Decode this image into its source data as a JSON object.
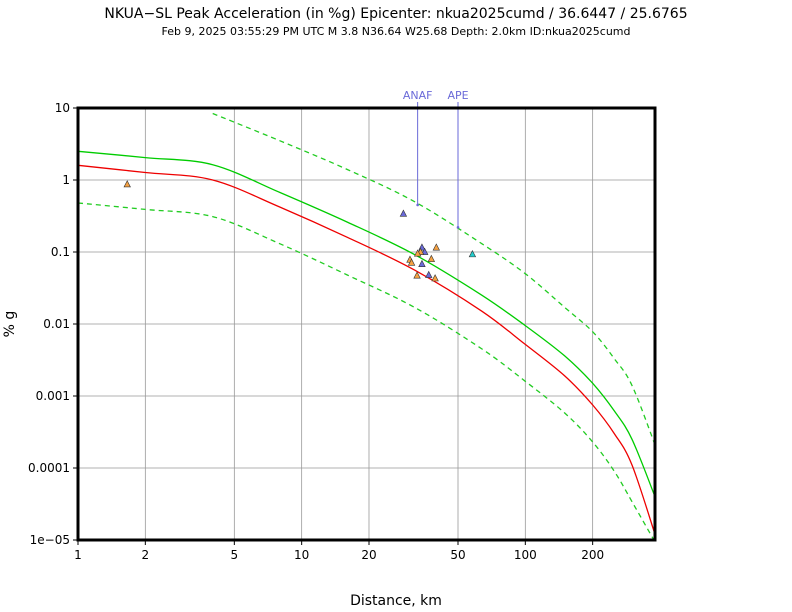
{
  "chart_data": {
    "type": "scatter",
    "title": "NKUA−SL Peak Acceleration (in %g) Epicenter: nkua2025cumd / 36.6447 / 25.6765",
    "subtitle": "Feb  9, 2025 03:55:29 PM UTC   M 3.8   N36.64 W25.68   Depth: 2.0km   ID:nkua2025cumd",
    "xlabel": "Distance, km",
    "ylabel": "% g",
    "xscale": "log",
    "yscale": "log",
    "xlim": [
      1,
      380
    ],
    "ylim": [
      1e-05,
      10
    ],
    "grid": true,
    "x_ticks": [
      {
        "v": 1,
        "label": "1"
      },
      {
        "v": 2,
        "label": "2"
      },
      {
        "v": 5,
        "label": "5"
      },
      {
        "v": 10,
        "label": "10"
      },
      {
        "v": 20,
        "label": "20"
      },
      {
        "v": 50,
        "label": "50"
      },
      {
        "v": 100,
        "label": "100"
      },
      {
        "v": 200,
        "label": "200"
      }
    ],
    "y_ticks": [
      {
        "v": 10,
        "label": "10"
      },
      {
        "v": 1,
        "label": "1"
      },
      {
        "v": 0.1,
        "label": "0.1"
      },
      {
        "v": 0.01,
        "label": "0.01"
      },
      {
        "v": 0.001,
        "label": "0.001"
      },
      {
        "v": 0.0001,
        "label": "0.0001"
      },
      {
        "v": 1e-05,
        "label": "1e−05"
      }
    ],
    "curves": [
      {
        "color": "#00cc00",
        "dash": "solid",
        "x": [
          1,
          2,
          4,
          8,
          16,
          32,
          64,
          100,
          150,
          200,
          250,
          300,
          380
        ],
        "y": [
          2.5,
          2.05,
          1.63,
          0.67,
          0.26,
          0.092,
          0.025,
          0.0095,
          0.0036,
          0.0015,
          0.00062,
          0.00025,
          4e-05
        ]
      },
      {
        "color": "#ee0000",
        "dash": "solid",
        "x": [
          1,
          2,
          4,
          8,
          16,
          32,
          64,
          100,
          150,
          200,
          250,
          300,
          380
        ],
        "y": [
          1.6,
          1.27,
          1.0,
          0.42,
          0.16,
          0.056,
          0.015,
          0.0052,
          0.0019,
          0.00075,
          0.0003,
          0.00011,
          1.2e-05
        ]
      },
      {
        "color": "#22cc22",
        "dash": "dashed",
        "x": [
          4,
          8,
          16,
          32,
          64,
          100,
          150,
          200,
          250,
          300,
          380
        ],
        "y": [
          8.4,
          3.5,
          1.4,
          0.5,
          0.13,
          0.05,
          0.017,
          0.0078,
          0.0033,
          0.0014,
          0.00021
        ]
      },
      {
        "color": "#22cc22",
        "dash": "dashed",
        "x": [
          1,
          2,
          4,
          8,
          16,
          32,
          64,
          100,
          150,
          200,
          250,
          300,
          380
        ],
        "y": [
          0.48,
          0.39,
          0.31,
          0.13,
          0.048,
          0.017,
          0.0045,
          0.0016,
          0.00058,
          0.00023,
          9e-05,
          3.4e-05,
          8e-06
        ]
      }
    ],
    "points": [
      {
        "x": 1.66,
        "y": 0.87,
        "color": "#f5a142"
      },
      {
        "x": 28.5,
        "y": 0.34,
        "color": "#6a6ad8"
      },
      {
        "x": 34.5,
        "y": 0.115,
        "color": "#6a6ad8"
      },
      {
        "x": 35.5,
        "y": 0.1,
        "color": "#6a6ad8"
      },
      {
        "x": 34.0,
        "y": 0.1,
        "color": "#f5a142"
      },
      {
        "x": 33.0,
        "y": 0.095,
        "color": "#f5a142"
      },
      {
        "x": 30.5,
        "y": 0.078,
        "color": "#f5a142"
      },
      {
        "x": 31.0,
        "y": 0.071,
        "color": "#f5a142"
      },
      {
        "x": 38.0,
        "y": 0.08,
        "color": "#f5a142"
      },
      {
        "x": 40.0,
        "y": 0.115,
        "color": "#f5a142"
      },
      {
        "x": 34.5,
        "y": 0.068,
        "color": "#6a6ad8"
      },
      {
        "x": 32.8,
        "y": 0.047,
        "color": "#f5a142"
      },
      {
        "x": 37.0,
        "y": 0.048,
        "color": "#6a6ad8"
      },
      {
        "x": 39.5,
        "y": 0.043,
        "color": "#f5a142"
      },
      {
        "x": 58.0,
        "y": 0.093,
        "color": "#22cccc"
      }
    ],
    "stations": [
      {
        "label": "ANAF",
        "x": 33.0,
        "y_value": 0.45,
        "color": "#6a6ad8"
      },
      {
        "label": "APE",
        "x": 50.0,
        "y_value": 0.22,
        "color": "#6a6ad8"
      }
    ]
  }
}
